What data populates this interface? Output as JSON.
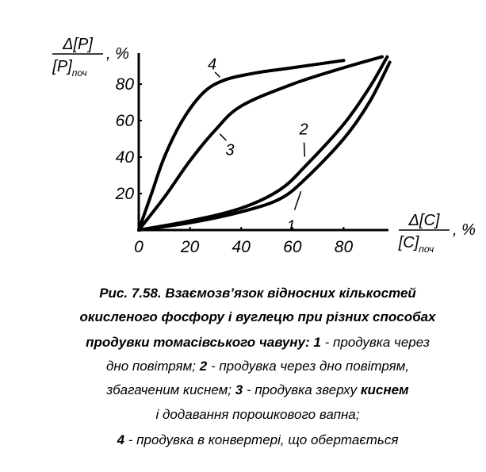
{
  "chart_data": {
    "type": "line",
    "ylabel": {
      "numerator": "Δ[P]",
      "denominator": "[P]",
      "subscript": "поч",
      "unit": ", %"
    },
    "xlabel": {
      "numerator": "Δ[C]",
      "denominator": "[C]",
      "subscript": "поч",
      "unit": ", %"
    },
    "xlim": [
      0,
      97.5
    ],
    "ylim": [
      0,
      97
    ],
    "xticks": [
      0,
      20,
      40,
      60,
      80
    ],
    "yticks": [
      20,
      40,
      60,
      80
    ],
    "grid": false,
    "color": "#000000",
    "series": [
      {
        "name": "1",
        "x": [
          0,
          20,
          40,
          55,
          65,
          80,
          90,
          98
        ],
        "values": [
          0,
          4,
          10,
          17,
          28,
          50,
          70,
          92
        ]
      },
      {
        "name": "2",
        "x": [
          0,
          20,
          40,
          55,
          65,
          80,
          90,
          97
        ],
        "values": [
          0,
          5,
          12,
          22,
          35,
          58,
          78,
          95
        ]
      },
      {
        "name": "3",
        "x": [
          0,
          10,
          20,
          30,
          40,
          60,
          80,
          95
        ],
        "values": [
          0,
          18,
          38,
          55,
          68,
          80,
          89,
          95
        ]
      },
      {
        "name": "4",
        "x": [
          0,
          5,
          10,
          17,
          25,
          33,
          45,
          60,
          80
        ],
        "values": [
          0,
          20,
          40,
          60,
          75,
          82,
          86,
          89,
          93
        ]
      }
    ],
    "caption": [
      [
        {
          "text": "Рис. 7.58. Взаємозв’язок відносних кількостей",
          "bold": true
        }
      ],
      [
        {
          "text": "окисленого фосфору і вуглецю при різних способах",
          "bold": true
        }
      ],
      [
        {
          "text": "продувки томасівського чавуну: 1",
          "bold": true
        },
        {
          "text": " - продувка через",
          "bold": false
        }
      ],
      [
        {
          "text": "дно повітрям; ",
          "bold": false
        },
        {
          "text": "2",
          "bold": true
        },
        {
          "text": " - продувка через дно повітрям,",
          "bold": false
        }
      ],
      [
        {
          "text": "збагаченим киснем; ",
          "bold": false
        },
        {
          "text": "3",
          "bold": true
        },
        {
          "text": " - продувка зверху ",
          "bold": false
        },
        {
          "text": "киснем",
          "bold": true
        }
      ],
      [
        {
          "text": "і додавання порошкового вапна;",
          "bold": false
        }
      ],
      [
        {
          "text": "4",
          "bold": true
        },
        {
          "text": " - продувка в конвертері, що обертається",
          "bold": false
        }
      ]
    ]
  }
}
